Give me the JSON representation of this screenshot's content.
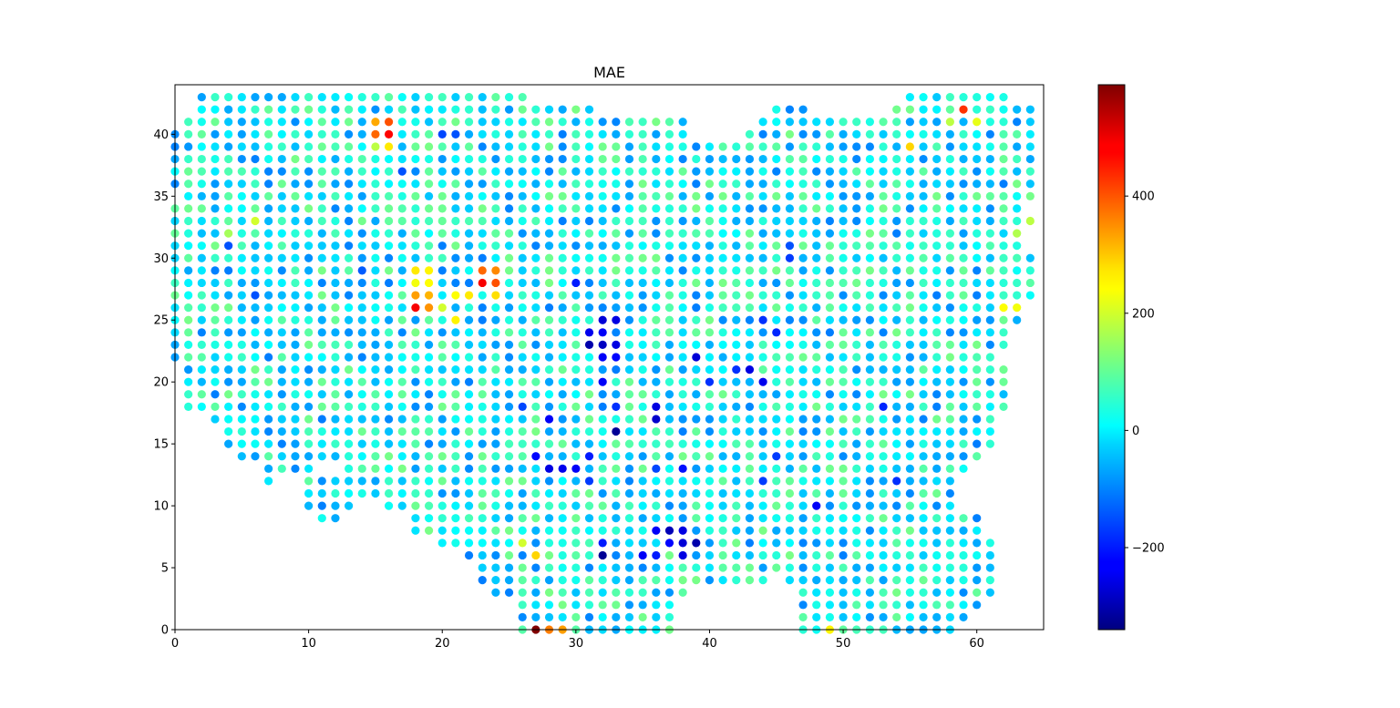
{
  "chart_data": {
    "type": "scatter",
    "title": "MAE",
    "xlabel": "",
    "ylabel": "",
    "xlim": [
      0,
      65
    ],
    "ylim": [
      0,
      44
    ],
    "x_ticks": [
      0,
      10,
      20,
      30,
      40,
      50,
      60
    ],
    "y_ticks": [
      0,
      5,
      10,
      15,
      20,
      25,
      30,
      35,
      40
    ],
    "grid": false,
    "legend": "none",
    "colormap": "jet",
    "colorbar": {
      "min": -340,
      "max": 590,
      "ticks": [
        -200,
        0,
        200,
        400
      ],
      "placement": "right"
    },
    "grid_points_note_free": true,
    "rows": [
      {
        "y": 43,
        "segments": [
          [
            2,
            26
          ],
          [
            55,
            62
          ]
        ]
      },
      {
        "y": 42,
        "segments": [
          [
            2,
            31
          ],
          [
            45,
            47
          ],
          [
            54,
            64
          ]
        ]
      },
      {
        "y": 41,
        "segments": [
          [
            1,
            32
          ],
          [
            33,
            38
          ],
          [
            44,
            64
          ]
        ]
      },
      {
        "y": 40,
        "segments": [
          [
            0,
            38
          ],
          [
            43,
            64
          ]
        ]
      },
      {
        "y": 39,
        "segments": [
          [
            0,
            41
          ],
          [
            42,
            64
          ]
        ]
      },
      {
        "y": 38,
        "segments": [
          [
            0,
            64
          ]
        ]
      },
      {
        "y": 37,
        "segments": [
          [
            0,
            64
          ]
        ]
      },
      {
        "y": 36,
        "segments": [
          [
            0,
            64
          ]
        ]
      },
      {
        "y": 35,
        "segments": [
          [
            1,
            64
          ]
        ]
      },
      {
        "y": 34,
        "segments": [
          [
            0,
            63
          ]
        ]
      },
      {
        "y": 33,
        "segments": [
          [
            0,
            64
          ]
        ]
      },
      {
        "y": 32,
        "segments": [
          [
            0,
            63
          ]
        ]
      },
      {
        "y": 31,
        "segments": [
          [
            0,
            63
          ]
        ]
      },
      {
        "y": 30,
        "segments": [
          [
            0,
            64
          ]
        ]
      },
      {
        "y": 29,
        "segments": [
          [
            0,
            64
          ]
        ]
      },
      {
        "y": 28,
        "segments": [
          [
            0,
            64
          ]
        ]
      },
      {
        "y": 27,
        "segments": [
          [
            0,
            64
          ]
        ]
      },
      {
        "y": 26,
        "segments": [
          [
            0,
            63
          ]
        ]
      },
      {
        "y": 25,
        "segments": [
          [
            0,
            63
          ]
        ]
      },
      {
        "y": 24,
        "segments": [
          [
            0,
            62
          ]
        ]
      },
      {
        "y": 23,
        "segments": [
          [
            0,
            62
          ]
        ]
      },
      {
        "y": 22,
        "segments": [
          [
            0,
            61
          ]
        ]
      },
      {
        "y": 21,
        "segments": [
          [
            1,
            62
          ]
        ]
      },
      {
        "y": 20,
        "segments": [
          [
            1,
            62
          ]
        ]
      },
      {
        "y": 19,
        "segments": [
          [
            1,
            62
          ]
        ]
      },
      {
        "y": 18,
        "segments": [
          [
            1,
            62
          ]
        ]
      },
      {
        "y": 17,
        "segments": [
          [
            3,
            61
          ]
        ]
      },
      {
        "y": 16,
        "segments": [
          [
            4,
            61
          ]
        ]
      },
      {
        "y": 15,
        "segments": [
          [
            4,
            61
          ]
        ]
      },
      {
        "y": 14,
        "segments": [
          [
            5,
            60
          ]
        ]
      },
      {
        "y": 13,
        "segments": [
          [
            7,
            10
          ],
          [
            13,
            59
          ]
        ]
      },
      {
        "y": 12,
        "segments": [
          [
            7,
            7
          ],
          [
            10,
            26
          ],
          [
            27,
            58
          ]
        ]
      },
      {
        "y": 11,
        "segments": [
          [
            10,
            26
          ],
          [
            27,
            58
          ]
        ]
      },
      {
        "y": 10,
        "segments": [
          [
            10,
            13
          ],
          [
            16,
            58
          ]
        ]
      },
      {
        "y": 9,
        "segments": [
          [
            11,
            12
          ],
          [
            18,
            60
          ]
        ]
      },
      {
        "y": 8,
        "segments": [
          [
            18,
            60
          ]
        ]
      },
      {
        "y": 7,
        "segments": [
          [
            20,
            61
          ]
        ]
      },
      {
        "y": 6,
        "segments": [
          [
            22,
            61
          ]
        ]
      },
      {
        "y": 5,
        "segments": [
          [
            23,
            44
          ],
          [
            45,
            61
          ]
        ]
      },
      {
        "y": 4,
        "segments": [
          [
            23,
            44
          ],
          [
            46,
            61
          ]
        ]
      },
      {
        "y": 3,
        "segments": [
          [
            24,
            38
          ],
          [
            47,
            61
          ]
        ]
      },
      {
        "y": 2,
        "segments": [
          [
            26,
            37
          ],
          [
            47,
            60
          ]
        ]
      },
      {
        "y": 1,
        "segments": [
          [
            26,
            37
          ],
          [
            47,
            59
          ]
        ]
      },
      {
        "y": 0,
        "segments": [
          [
            26,
            37
          ],
          [
            47,
            58
          ]
        ]
      }
    ],
    "point_values_default": 20,
    "highlights": [
      {
        "x": 15,
        "y": 41,
        "value": 320
      },
      {
        "x": 16,
        "y": 41,
        "value": 400
      },
      {
        "x": 15,
        "y": 40,
        "value": 380
      },
      {
        "x": 16,
        "y": 40,
        "value": 470
      },
      {
        "x": 16,
        "y": 39,
        "value": 260
      },
      {
        "x": 15,
        "y": 39,
        "value": 180
      },
      {
        "x": 59,
        "y": 42,
        "value": 430
      },
      {
        "x": 58,
        "y": 41,
        "value": 180
      },
      {
        "x": 60,
        "y": 41,
        "value": 220
      },
      {
        "x": 55,
        "y": 39,
        "value": 280
      },
      {
        "x": 6,
        "y": 33,
        "value": 200
      },
      {
        "x": 4,
        "y": 32,
        "value": 160
      },
      {
        "x": 23,
        "y": 29,
        "value": 380
      },
      {
        "x": 24,
        "y": 29,
        "value": 350
      },
      {
        "x": 23,
        "y": 28,
        "value": 480
      },
      {
        "x": 24,
        "y": 28,
        "value": 400
      },
      {
        "x": 18,
        "y": 29,
        "value": 260
      },
      {
        "x": 19,
        "y": 29,
        "value": 250
      },
      {
        "x": 18,
        "y": 28,
        "value": 230
      },
      {
        "x": 19,
        "y": 28,
        "value": 240
      },
      {
        "x": 18,
        "y": 27,
        "value": 330
      },
      {
        "x": 19,
        "y": 27,
        "value": 310
      },
      {
        "x": 21,
        "y": 27,
        "value": 240
      },
      {
        "x": 22,
        "y": 27,
        "value": 260
      },
      {
        "x": 24,
        "y": 27,
        "value": 270
      },
      {
        "x": 18,
        "y": 26,
        "value": 480
      },
      {
        "x": 19,
        "y": 26,
        "value": 340
      },
      {
        "x": 21,
        "y": 25,
        "value": 250
      },
      {
        "x": 20,
        "y": 26,
        "value": 200
      },
      {
        "x": 27,
        "y": 6,
        "value": 280
      },
      {
        "x": 26,
        "y": 7,
        "value": 200
      },
      {
        "x": 27,
        "y": 0,
        "value": 590
      },
      {
        "x": 28,
        "y": 0,
        "value": 360
      },
      {
        "x": 29,
        "y": 0,
        "value": 330
      },
      {
        "x": 49,
        "y": 0,
        "value": 250
      },
      {
        "x": 62,
        "y": 26,
        "value": 240
      },
      {
        "x": 63,
        "y": 26,
        "value": 230
      },
      {
        "x": 64,
        "y": 33,
        "value": 180
      },
      {
        "x": 63,
        "y": 32,
        "value": 170
      },
      {
        "x": 30,
        "y": 28,
        "value": -200
      },
      {
        "x": 32,
        "y": 25,
        "value": -260
      },
      {
        "x": 33,
        "y": 25,
        "value": -250
      },
      {
        "x": 31,
        "y": 24,
        "value": -240
      },
      {
        "x": 32,
        "y": 24,
        "value": -230
      },
      {
        "x": 31,
        "y": 23,
        "value": -300
      },
      {
        "x": 32,
        "y": 23,
        "value": -280
      },
      {
        "x": 33,
        "y": 23,
        "value": -250
      },
      {
        "x": 32,
        "y": 22,
        "value": -230
      },
      {
        "x": 33,
        "y": 22,
        "value": -220
      },
      {
        "x": 39,
        "y": 22,
        "value": -260
      },
      {
        "x": 43,
        "y": 21,
        "value": -250
      },
      {
        "x": 42,
        "y": 21,
        "value": -180
      },
      {
        "x": 44,
        "y": 20,
        "value": -240
      },
      {
        "x": 32,
        "y": 20,
        "value": -230
      },
      {
        "x": 40,
        "y": 20,
        "value": -180
      },
      {
        "x": 36,
        "y": 18,
        "value": -250
      },
      {
        "x": 36,
        "y": 17,
        "value": -270
      },
      {
        "x": 28,
        "y": 17,
        "value": -230
      },
      {
        "x": 33,
        "y": 16,
        "value": -320
      },
      {
        "x": 27,
        "y": 14,
        "value": -220
      },
      {
        "x": 28,
        "y": 13,
        "value": -250
      },
      {
        "x": 29,
        "y": 13,
        "value": -240
      },
      {
        "x": 30,
        "y": 13,
        "value": -230
      },
      {
        "x": 26,
        "y": 18,
        "value": -160
      },
      {
        "x": 33,
        "y": 18,
        "value": -180
      },
      {
        "x": 38,
        "y": 13,
        "value": -210
      },
      {
        "x": 36,
        "y": 13,
        "value": -160
      },
      {
        "x": 37,
        "y": 8,
        "value": -290
      },
      {
        "x": 38,
        "y": 8,
        "value": -250
      },
      {
        "x": 36,
        "y": 8,
        "value": -230
      },
      {
        "x": 39,
        "y": 7,
        "value": -300
      },
      {
        "x": 38,
        "y": 7,
        "value": -260
      },
      {
        "x": 37,
        "y": 7,
        "value": -220
      },
      {
        "x": 35,
        "y": 6,
        "value": -230
      },
      {
        "x": 36,
        "y": 6,
        "value": -200
      },
      {
        "x": 38,
        "y": 6,
        "value": -250
      },
      {
        "x": 32,
        "y": 6,
        "value": -320
      },
      {
        "x": 32,
        "y": 7,
        "value": -200
      },
      {
        "x": 48,
        "y": 10,
        "value": -230
      },
      {
        "x": 31,
        "y": 12,
        "value": -170
      },
      {
        "x": 44,
        "y": 12,
        "value": -170
      },
      {
        "x": 45,
        "y": 14,
        "value": -170
      },
      {
        "x": 31,
        "y": 14,
        "value": -200
      },
      {
        "x": 54,
        "y": 12,
        "value": -180
      },
      {
        "x": 53,
        "y": 18,
        "value": -190
      },
      {
        "x": 45,
        "y": 24,
        "value": -190
      },
      {
        "x": 44,
        "y": 25,
        "value": -180
      },
      {
        "x": 6,
        "y": 27,
        "value": -150
      },
      {
        "x": 4,
        "y": 31,
        "value": -150
      },
      {
        "x": 14,
        "y": 29,
        "value": -140
      },
      {
        "x": 46,
        "y": 30,
        "value": -170
      },
      {
        "x": 46,
        "y": 31,
        "value": -150
      },
      {
        "x": 17,
        "y": 37,
        "value": -150
      },
      {
        "x": 20,
        "y": 40,
        "value": -160
      },
      {
        "x": 21,
        "y": 40,
        "value": -150
      }
    ]
  }
}
